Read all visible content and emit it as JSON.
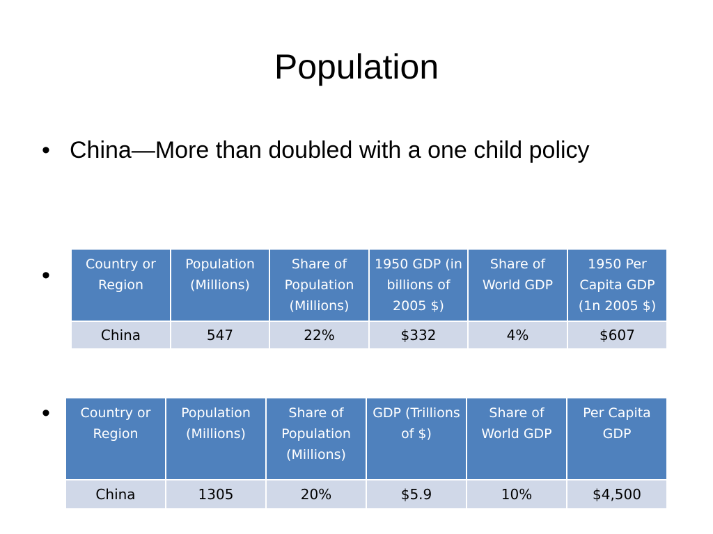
{
  "slide": {
    "title": "Population",
    "bullets": [
      {
        "text": "China—More than doubled with a one child policy"
      },
      {
        "text": ""
      },
      {
        "text": ""
      }
    ],
    "bullet_glyph": "•"
  },
  "table_1950": {
    "headers": [
      "Country or Region",
      "Population (Millions)",
      "Share of Population (Millions)",
      "1950 GDP (in billions of 2005 $)",
      "Share of World GDP",
      "1950 Per Capita GDP (1n 2005 $)"
    ],
    "rows": [
      [
        "China",
        "547",
        "22%",
        "$332",
        "4%",
        "$607"
      ]
    ]
  },
  "table_current": {
    "headers": [
      "Country or Region",
      "Population (Millions)",
      "Share of Population (Millions)",
      "GDP (Trillions of $)",
      "Share of World GDP",
      "Per Capita GDP"
    ],
    "rows": [
      [
        "China",
        "1305",
        "20%",
        "$5.9",
        "10%",
        "$4,500"
      ]
    ]
  },
  "colors": {
    "header_bg": "#4f81bd",
    "row_bg": "#d0d8e8",
    "header_text": "#ffffff"
  }
}
